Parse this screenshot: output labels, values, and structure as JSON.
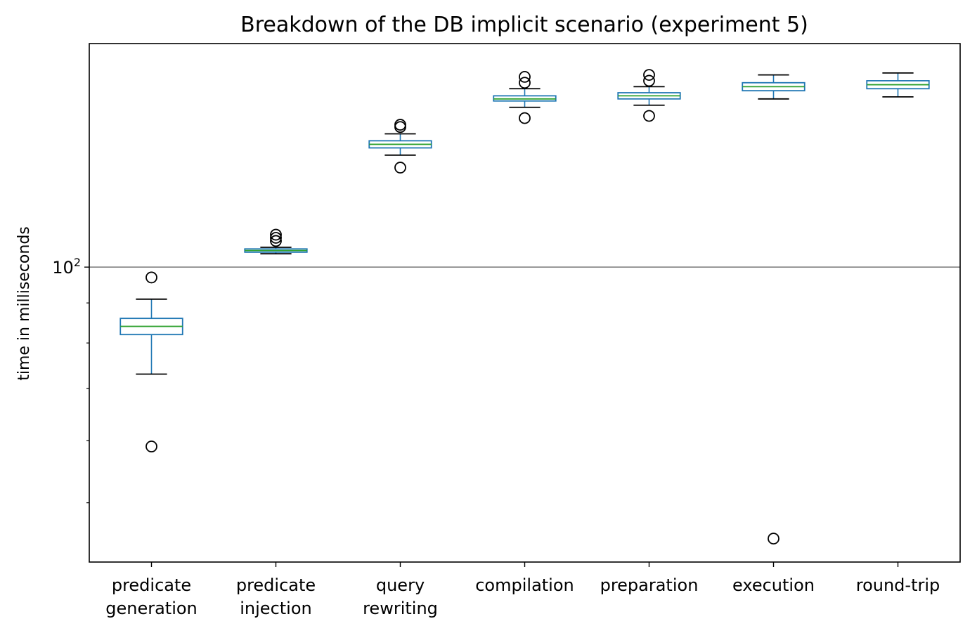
{
  "chart_data": {
    "type": "box",
    "title": "Breakdown of the DB implicit scenario (experiment 5)",
    "xlabel": "",
    "ylabel": "time in milliseconds",
    "yscale": "log",
    "ylim": [
      42,
      193
    ],
    "y_tick_label": {
      "base": "10",
      "exp": "2"
    },
    "reference_line": 100,
    "grid": false,
    "categories": [
      [
        "predicate",
        "generation"
      ],
      [
        "predicate",
        "injection"
      ],
      [
        "query",
        "rewriting"
      ],
      [
        "compilation"
      ],
      [
        "preparation"
      ],
      [
        "execution"
      ],
      [
        "round-trip"
      ]
    ],
    "boxes": [
      {
        "whislo": 73,
        "q1": 82,
        "med": 84,
        "q3": 86,
        "whishi": 91,
        "fliers": [
          59,
          97
        ]
      },
      {
        "whislo": 104,
        "q1": 104.5,
        "med": 105,
        "q3": 105.5,
        "whishi": 106,
        "fliers": [
          108,
          109,
          110
        ]
      },
      {
        "whislo": 139,
        "q1": 142,
        "med": 143.5,
        "q3": 145,
        "whishi": 148,
        "fliers": [
          134,
          151,
          152
        ]
      },
      {
        "whislo": 160,
        "q1": 163,
        "med": 164,
        "q3": 165.5,
        "whishi": 169,
        "fliers": [
          155,
          172,
          175
        ]
      },
      {
        "whislo": 161,
        "q1": 164,
        "med": 165.5,
        "q3": 167,
        "whishi": 170,
        "fliers": [
          156,
          173,
          176
        ]
      },
      {
        "whislo": 164,
        "q1": 168,
        "med": 170,
        "q3": 172,
        "whishi": 176,
        "fliers": [
          45
        ]
      },
      {
        "whislo": 165,
        "q1": 169,
        "med": 171,
        "q3": 173,
        "whishi": 177,
        "fliers": []
      }
    ],
    "colors": {
      "box": "#1f77b4",
      "median": "#2ca02c",
      "whisker": "#000000",
      "refline": "#808080"
    }
  }
}
